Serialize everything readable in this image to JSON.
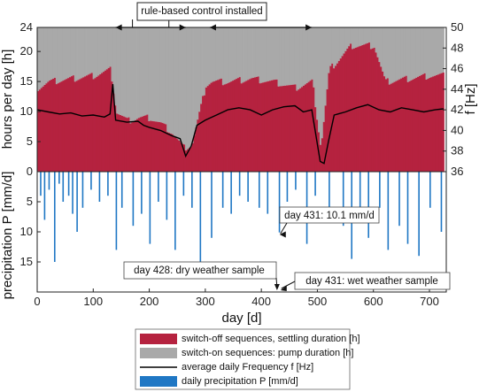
{
  "chart_data": {
    "type": "bar",
    "x_label": "day [d]",
    "x_ticks": [
      "0",
      "100",
      "200",
      "300",
      "400",
      "500",
      "600",
      "700"
    ],
    "xlim": [
      0,
      730
    ],
    "top_panel": {
      "y_left_label": "hours per day [h]",
      "y_left_ticks": [
        "0",
        "5",
        "10",
        "15",
        "20",
        "24"
      ],
      "y_left_lim": [
        0,
        24
      ],
      "y_right_label": "f [Hz]",
      "y_right_ticks": [
        "36",
        "38",
        "40",
        "42",
        "44",
        "46",
        "48",
        "50"
      ],
      "y_right_lim": [
        36,
        50
      ],
      "series": [
        {
          "name": "switch-off sequences, settling duration [h]",
          "kind": "stacked_bar",
          "color": "#b5223f",
          "segments_day_value": [
            [
              0,
              14
            ],
            [
              20,
              15
            ],
            [
              60,
              15.5
            ],
            [
              100,
              16
            ],
            [
              130,
              17
            ],
            [
              140,
              10
            ],
            [
              160,
              8.5
            ],
            [
              180,
              9
            ],
            [
              200,
              9
            ],
            [
              220,
              8
            ],
            [
              240,
              6.5
            ],
            [
              260,
              4
            ],
            [
              275,
              4.5
            ],
            [
              300,
              14.5
            ],
            [
              310,
              15
            ],
            [
              340,
              15
            ],
            [
              380,
              15.5
            ],
            [
              420,
              15
            ],
            [
              460,
              14
            ],
            [
              490,
              15
            ],
            [
              505,
              4
            ],
            [
              520,
              17
            ],
            [
              560,
              21
            ],
            [
              600,
              21
            ],
            [
              620,
              15
            ],
            [
              660,
              15.5
            ],
            [
              700,
              16
            ],
            [
              725,
              16
            ]
          ]
        },
        {
          "name": "switch-on sequences: pump duration [h]",
          "kind": "stacked_bar",
          "color": "#a9a9a9",
          "total_hours": 24
        },
        {
          "name": "average daily Frequency f [Hz]",
          "kind": "line",
          "color": "#000000",
          "axis": "right",
          "points_day_hz": [
            [
              0,
              42
            ],
            [
              20,
              41.8
            ],
            [
              40,
              41.6
            ],
            [
              60,
              41.7
            ],
            [
              80,
              41.4
            ],
            [
              100,
              41.5
            ],
            [
              120,
              41.3
            ],
            [
              130,
              41.6
            ],
            [
              135,
              44.5
            ],
            [
              140,
              41
            ],
            [
              160,
              40.8
            ],
            [
              180,
              40.9
            ],
            [
              190,
              40.5
            ],
            [
              200,
              40.3
            ],
            [
              220,
              40
            ],
            [
              240,
              39.5
            ],
            [
              255,
              39.2
            ],
            [
              265,
              37.5
            ],
            [
              275,
              38.5
            ],
            [
              285,
              40.5
            ],
            [
              300,
              41
            ],
            [
              320,
              41.5
            ],
            [
              340,
              42
            ],
            [
              360,
              42.2
            ],
            [
              380,
              42
            ],
            [
              400,
              41.5
            ],
            [
              420,
              42
            ],
            [
              440,
              42.3
            ],
            [
              460,
              42.4
            ],
            [
              475,
              41.8
            ],
            [
              490,
              42
            ],
            [
              505,
              37
            ],
            [
              512,
              36.8
            ],
            [
              520,
              39
            ],
            [
              530,
              41.5
            ],
            [
              550,
              41.8
            ],
            [
              570,
              42.2
            ],
            [
              590,
              42.5
            ],
            [
              610,
              42
            ],
            [
              630,
              41.8
            ],
            [
              650,
              42.2
            ],
            [
              670,
              42
            ],
            [
              690,
              41.8
            ],
            [
              710,
              42
            ],
            [
              725,
              42.1
            ]
          ]
        }
      ]
    },
    "bottom_panel": {
      "y_label": "precipitation P [mm/d]",
      "y_ticks": [
        "0",
        "5",
        "10",
        "15"
      ],
      "y_lim": [
        0,
        20
      ],
      "inverted": true,
      "series": [
        {
          "name": "daily precipitation P [mm/d]",
          "kind": "bar",
          "color": "#1f77c4",
          "points_day_mm": [
            [
              5,
              4
            ],
            [
              12,
              8
            ],
            [
              20,
              3
            ],
            [
              30,
              15
            ],
            [
              38,
              2
            ],
            [
              45,
              5
            ],
            [
              55,
              4
            ],
            [
              62,
              7
            ],
            [
              70,
              10
            ],
            [
              80,
              6
            ],
            [
              95,
              3
            ],
            [
              110,
              5
            ],
            [
              125,
              4
            ],
            [
              140,
              13
            ],
            [
              150,
              6
            ],
            [
              170,
              9
            ],
            [
              185,
              7
            ],
            [
              200,
              12
            ],
            [
              215,
              5
            ],
            [
              230,
              8
            ],
            [
              245,
              13
            ],
            [
              260,
              4
            ],
            [
              275,
              6
            ],
            [
              290,
              15.5
            ],
            [
              310,
              11
            ],
            [
              330,
              6
            ],
            [
              345,
              7
            ],
            [
              360,
              4
            ],
            [
              375,
              5
            ],
            [
              395,
              6
            ],
            [
              410,
              7
            ],
            [
              431,
              10.1
            ],
            [
              445,
              5
            ],
            [
              460,
              3
            ],
            [
              480,
              12
            ],
            [
              495,
              4
            ],
            [
              520,
              6
            ],
            [
              545,
              9
            ],
            [
              560,
              14.5
            ],
            [
              575,
              7
            ],
            [
              590,
              11
            ],
            [
              610,
              6
            ],
            [
              625,
              13
            ],
            [
              645,
              9
            ],
            [
              660,
              12
            ],
            [
              680,
              14
            ],
            [
              700,
              6
            ],
            [
              720,
              10
            ]
          ]
        }
      ]
    },
    "annotations": [
      {
        "text": "rule-based control installed",
        "arrow_spans_day": [
          [
            140,
            265
          ],
          [
            308,
            490
          ]
        ],
        "tick_days": [
          170,
          235
        ]
      },
      {
        "text": "day 431: 10.1 mm/d",
        "day": 431,
        "value_mm": 10.1
      },
      {
        "text": "day 428: dry weather sample",
        "day": 428
      },
      {
        "text": "day 431: wet weather sample",
        "day": 431
      }
    ],
    "legend": {
      "placement": "bottom",
      "entries": [
        {
          "label": "switch-off sequences, settling duration [h]",
          "color": "#b5223f",
          "kind": "patch"
        },
        {
          "label": "switch-on sequences: pump duration [h]",
          "color": "#a9a9a9",
          "kind": "patch"
        },
        {
          "label": "average daily Frequency f [Hz]",
          "color": "#000000",
          "kind": "line"
        },
        {
          "label": "daily precipitation P [mm/d]",
          "color": "#1f77c4",
          "kind": "patch"
        }
      ]
    },
    "grid": false
  }
}
